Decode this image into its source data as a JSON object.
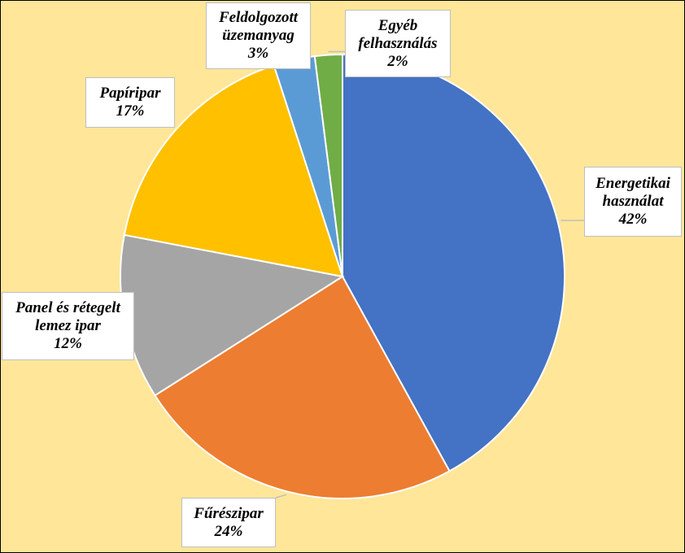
{
  "chart_data": {
    "type": "pie",
    "categories": [
      "Energetikai használat",
      "Fűrészipar",
      "Panel és rétegelt lemez ipar",
      "Papíripar",
      "Feldolgozott üzemanyag",
      "Egyéb felhasználás"
    ],
    "values": [
      42,
      24,
      12,
      17,
      3,
      2
    ],
    "value_labels": [
      "42%",
      "24%",
      "12%",
      "17%",
      "3%",
      "2%"
    ],
    "colors": [
      "#4472c4",
      "#ed7d31",
      "#a5a5a5",
      "#ffc000",
      "#5b9bd5",
      "#70ad47"
    ]
  }
}
